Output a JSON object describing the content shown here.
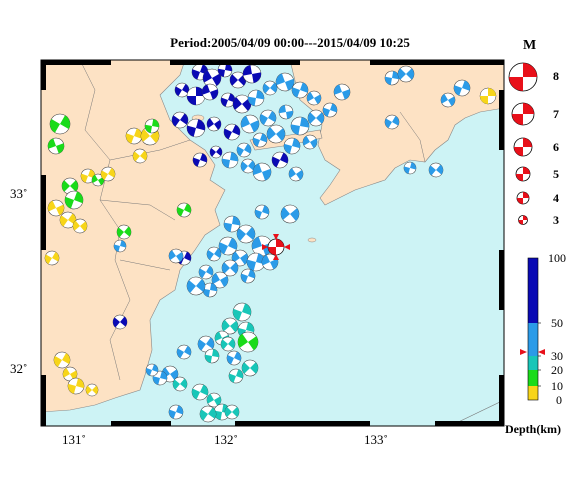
{
  "header": {
    "title": "Period:2005/04/09 00:00---2015/04/09 10:25"
  },
  "map": {
    "lon_ticks": [
      "131˚",
      "132˚",
      "133˚"
    ],
    "lat_ticks": [
      "33˚",
      "32˚"
    ],
    "land_color": "#fde2c4",
    "sea_color": "#cdf3f5"
  },
  "legend": {
    "magnitude_title": "M",
    "magnitudes": [
      "8",
      "7",
      "6",
      "5",
      "4",
      "3"
    ],
    "mechanism_color": "#ff0000",
    "depth_title": "Depth(km)",
    "depth_ticks": [
      "100",
      "50",
      "30",
      "20",
      "10",
      "0"
    ],
    "depth_colors": {
      "shallow_0_10": "#f7d51a",
      "10_20": "#1adb1a",
      "20_30": "#18c6b8",
      "30_50": "#2b9be8",
      "50_100": "#0a0ab4"
    }
  },
  "events": {
    "latest_marker_color": "#e8101a"
  }
}
